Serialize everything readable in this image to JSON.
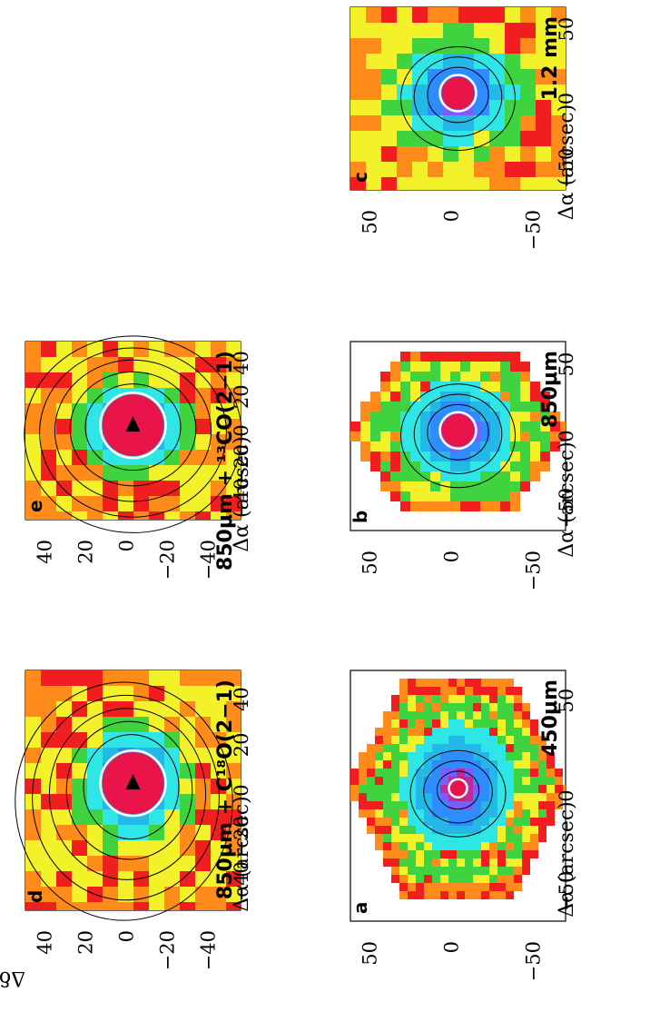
{
  "figure": {
    "ylabel": "Δδ (arcsec)",
    "xlabel": "Δα (arcsec)",
    "panels": [
      {
        "id": "a",
        "letter": "a",
        "band": "450μm",
        "xticks": [
          "50",
          "0",
          "−50"
        ],
        "yticks": [
          "50",
          "0",
          "−50"
        ],
        "shape": "hexagon",
        "noise": "high"
      },
      {
        "id": "b",
        "letter": "b",
        "band": "850μm",
        "xticks": [
          "50",
          "0",
          "−50"
        ],
        "yticks": [
          "50",
          "0",
          "−50"
        ],
        "shape": "hexagon",
        "noise": "medium"
      },
      {
        "id": "c",
        "letter": "c",
        "band": "1.2 mm",
        "xticks": [
          "50",
          "0",
          "−50"
        ],
        "yticks": [
          "50",
          "0",
          "−50"
        ],
        "shape": "square",
        "noise": "low"
      },
      {
        "id": "d",
        "letter": "d",
        "band": "850μm + C¹⁸O(2−1)",
        "xticks": [
          "40",
          "20",
          "0",
          "−20",
          "−40"
        ],
        "yticks": [
          "40",
          "20",
          "0",
          "−20",
          "−40"
        ],
        "shape": "zoom",
        "noise": "low"
      },
      {
        "id": "e",
        "letter": "e",
        "band": "850μm + ¹³CO(2−1)",
        "xticks": [
          "40",
          "20",
          "0",
          "−20",
          "−40"
        ],
        "yticks": [
          "40",
          "20",
          "0",
          "−20",
          "−40"
        ],
        "shape": "zoom",
        "noise": "low"
      }
    ]
  },
  "colors": {
    "peak": "#e8144a",
    "core": "#7a5cff",
    "mid": "#2f8cff",
    "cyan": "#2fe6e6",
    "green": "#3fd43f",
    "yellow": "#f3f12a",
    "orange": "#ff8c1a",
    "red": "#f01e1e"
  }
}
